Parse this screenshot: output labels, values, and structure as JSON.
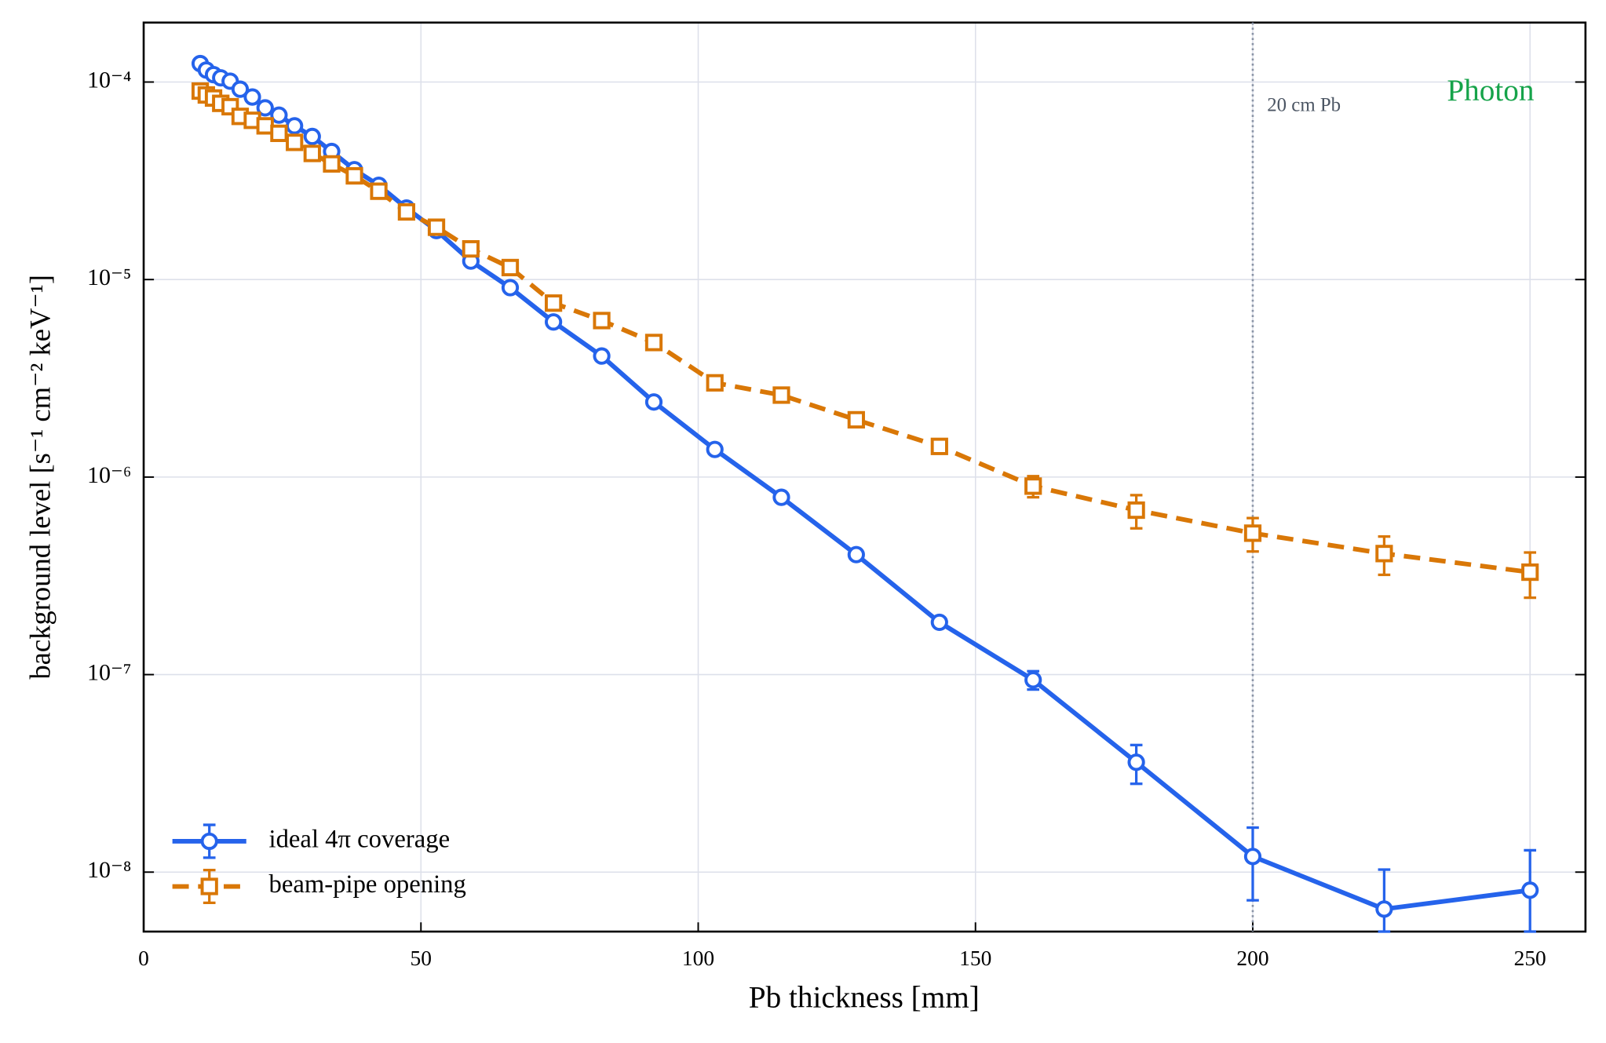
{
  "chart_data": {
    "type": "line",
    "xlabel": "Pb thickness [mm]",
    "ylabel": "background level [s⁻¹ cm⁻² keV⁻¹]",
    "annotations": [
      {
        "text": "20 cm Pb",
        "x": 200
      },
      {
        "text": "Photon",
        "color": "#16a34a"
      }
    ],
    "xlim": [
      0,
      260
    ],
    "xticks": [
      0,
      50,
      100,
      150,
      200,
      250
    ],
    "ylim": [
      5e-09,
      0.0002
    ],
    "yscale": "log",
    "yticks": [
      {
        "value": 1e-08,
        "label": "10⁻⁸"
      },
      {
        "value": 1e-07,
        "label": "10⁻⁷"
      },
      {
        "value": 1e-06,
        "label": "10⁻⁶"
      },
      {
        "value": 1e-05,
        "label": "10⁻⁵"
      },
      {
        "value": 0.0001,
        "label": "10⁻⁴"
      }
    ],
    "grid": true,
    "legend": "lower left",
    "x": [
      10.2,
      11.3,
      12.6,
      13.9,
      15.6,
      17.4,
      19.6,
      21.9,
      24.4,
      27.2,
      30.4,
      33.9,
      38,
      42.4,
      47.4,
      52.8,
      59,
      66.1,
      73.9,
      82.6,
      92,
      103,
      115,
      128.5,
      143.5,
      160.4,
      179,
      200,
      223.7,
      250
    ],
    "series": [
      {
        "name": "ideal 4π coverage",
        "color": "#2563eb",
        "marker": "circle",
        "linestyle": "solid",
        "values": [
          0.000124,
          0.000115,
          0.000109,
          0.000105,
          0.000101,
          9.2e-05,
          8.4e-05,
          7.4e-05,
          6.8e-05,
          6e-05,
          5.3e-05,
          4.45e-05,
          3.6e-05,
          3e-05,
          2.3e-05,
          1.77e-05,
          1.24e-05,
          9.1e-06,
          6.1e-06,
          4.1e-06,
          2.4e-06,
          1.38e-06,
          7.9e-07,
          4.05e-07,
          1.84e-07,
          9.4e-08,
          3.6e-08,
          1.2e-08,
          6.5e-09,
          8.1e-09
        ],
        "errors": [
          null,
          null,
          null,
          null,
          null,
          null,
          null,
          null,
          null,
          null,
          null,
          null,
          null,
          null,
          null,
          null,
          null,
          null,
          null,
          null,
          null,
          null,
          null,
          null,
          null,
          1e-08,
          8e-09,
          4.8e-09,
          3.8e-09,
          4.8e-09
        ]
      },
      {
        "name": "beam-pipe opening",
        "color": "#d97706",
        "marker": "square",
        "linestyle": "dashed",
        "values": [
          9e-05,
          8.6e-05,
          8.3e-05,
          7.8e-05,
          7.5e-05,
          6.7e-05,
          6.4e-05,
          6e-05,
          5.5e-05,
          4.95e-05,
          4.35e-05,
          3.85e-05,
          3.35e-05,
          2.8e-05,
          2.2e-05,
          1.84e-05,
          1.43e-05,
          1.15e-05,
          7.6e-06,
          6.2e-06,
          4.8e-06,
          3e-06,
          2.6e-06,
          1.95e-06,
          1.43e-06,
          9e-07,
          6.8e-07,
          5.2e-07,
          4.1e-07,
          3.3e-07
        ],
        "errors": [
          null,
          null,
          null,
          null,
          null,
          null,
          null,
          null,
          null,
          null,
          null,
          null,
          null,
          null,
          null,
          null,
          null,
          null,
          null,
          null,
          null,
          null,
          null,
          null,
          1e-07,
          1.1e-07,
          1.3e-07,
          1e-07,
          9e-08,
          8.5e-08
        ]
      }
    ]
  }
}
